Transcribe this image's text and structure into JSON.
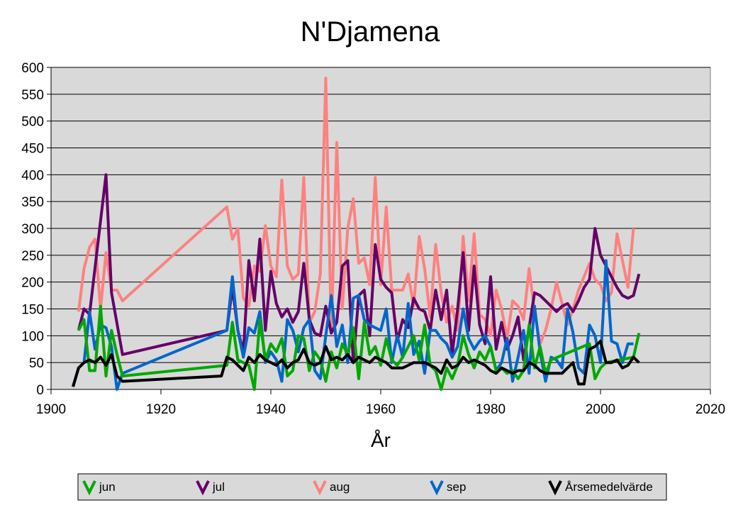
{
  "chart_data": {
    "type": "line",
    "title": "N'Djamena",
    "xlabel": "År",
    "ylabel": "",
    "xlim": [
      1900,
      2020
    ],
    "ylim": [
      0,
      600
    ],
    "xticks": [
      1900,
      1920,
      1940,
      1960,
      1980,
      2000,
      2020
    ],
    "yticks": [
      0,
      50,
      100,
      150,
      200,
      250,
      300,
      350,
      400,
      450,
      500,
      550,
      600
    ],
    "grid": "horizontal",
    "legend_position": "bottom",
    "series": [
      {
        "name": "jun",
        "color": "#00a800",
        "x": [
          1905,
          1906,
          1907,
          1908,
          1909,
          1910,
          1911,
          1912,
          1913,
          1932,
          1933,
          1934,
          1935,
          1936,
          1937,
          1938,
          1939,
          1940,
          1941,
          1942,
          1943,
          1944,
          1945,
          1946,
          1947,
          1948,
          1949,
          1950,
          1951,
          1952,
          1953,
          1954,
          1955,
          1956,
          1957,
          1958,
          1959,
          1960,
          1961,
          1962,
          1963,
          1964,
          1965,
          1966,
          1967,
          1968,
          1969,
          1970,
          1971,
          1972,
          1973,
          1974,
          1975,
          1976,
          1977,
          1978,
          1979,
          1980,
          1981,
          1982,
          1983,
          1984,
          1985,
          1986,
          1987,
          1988,
          1989,
          1990,
          1991,
          1998,
          1999,
          2000,
          2001,
          2006,
          2007
        ],
        "y": [
          110,
          130,
          35,
          35,
          155,
          25,
          110,
          65,
          25,
          45,
          125,
          55,
          50,
          45,
          0,
          130,
          55,
          85,
          70,
          95,
          25,
          35,
          100,
          95,
          35,
          70,
          55,
          15,
          70,
          40,
          85,
          65,
          115,
          20,
          125,
          65,
          80,
          45,
          95,
          55,
          45,
          60,
          80,
          100,
          55,
          120,
          45,
          35,
          0,
          40,
          20,
          45,
          100,
          65,
          40,
          70,
          55,
          80,
          35,
          40,
          30,
          35,
          20,
          35,
          120,
          40,
          80,
          30,
          55,
          85,
          20,
          40,
          50,
          60,
          105
        ]
      },
      {
        "name": "jul",
        "color": "#660066",
        "x": [
          1905,
          1906,
          1907,
          1910,
          1911,
          1913,
          1932,
          1933,
          1934,
          1935,
          1936,
          1937,
          1938,
          1939,
          1940,
          1941,
          1942,
          1943,
          1944,
          1945,
          1946,
          1947,
          1948,
          1949,
          1950,
          1951,
          1952,
          1953,
          1954,
          1955,
          1956,
          1957,
          1958,
          1959,
          1960,
          1961,
          1962,
          1963,
          1964,
          1965,
          1966,
          1967,
          1968,
          1969,
          1970,
          1971,
          1972,
          1973,
          1974,
          1975,
          1976,
          1977,
          1978,
          1979,
          1980,
          1981,
          1982,
          1983,
          1984,
          1985,
          1986,
          1987,
          1988,
          1989,
          1990,
          1991,
          1992,
          1993,
          1994,
          1995,
          1996,
          1997,
          1998,
          1999,
          2000,
          2001,
          2002,
          2003,
          2004,
          2005,
          2006,
          2007
        ],
        "y": [
          110,
          150,
          140,
          400,
          180,
          65,
          110,
          190,
          110,
          70,
          240,
          165,
          280,
          110,
          220,
          160,
          135,
          150,
          125,
          145,
          235,
          130,
          105,
          100,
          155,
          105,
          125,
          230,
          240,
          50,
          175,
          185,
          100,
          270,
          205,
          190,
          180,
          90,
          130,
          115,
          170,
          150,
          145,
          110,
          185,
          130,
          185,
          65,
          150,
          255,
          110,
          230,
          120,
          85,
          210,
          75,
          125,
          75,
          100,
          135,
          55,
          115,
          180,
          175,
          165,
          155,
          145,
          155,
          160,
          145,
          165,
          190,
          205,
          300,
          250,
          230,
          210,
          190,
          175,
          170,
          175,
          215
        ]
      },
      {
        "name": "aug",
        "color": "#ff8080",
        "x": [
          1905,
          1906,
          1907,
          1908,
          1909,
          1910,
          1911,
          1912,
          1913,
          1932,
          1933,
          1934,
          1935,
          1936,
          1937,
          1938,
          1939,
          1940,
          1941,
          1942,
          1943,
          1944,
          1945,
          1946,
          1947,
          1948,
          1949,
          1950,
          1951,
          1952,
          1953,
          1954,
          1955,
          1956,
          1957,
          1958,
          1959,
          1960,
          1961,
          1962,
          1963,
          1964,
          1965,
          1966,
          1967,
          1968,
          1969,
          1970,
          1971,
          1972,
          1973,
          1974,
          1975,
          1976,
          1977,
          1978,
          1979,
          1980,
          1981,
          1982,
          1983,
          1984,
          1985,
          1986,
          1987,
          1988,
          1989,
          1990,
          1991,
          1992,
          1993,
          1994,
          1995,
          1996,
          1997,
          1998,
          1999,
          2000,
          2001,
          2002,
          2003,
          2004,
          2005,
          2006
        ],
        "y": [
          145,
          225,
          265,
          280,
          150,
          255,
          185,
          185,
          165,
          340,
          280,
          300,
          170,
          155,
          230,
          220,
          305,
          230,
          210,
          390,
          230,
          205,
          215,
          395,
          125,
          145,
          215,
          580,
          105,
          460,
          150,
          300,
          355,
          235,
          245,
          195,
          395,
          195,
          340,
          185,
          185,
          185,
          215,
          155,
          285,
          225,
          135,
          270,
          180,
          125,
          155,
          110,
          285,
          165,
          290,
          140,
          130,
          100,
          185,
          150,
          95,
          165,
          155,
          130,
          225,
          145,
          85,
          110,
          150,
          200,
          160,
          120,
          150,
          185,
          210,
          235,
          205,
          195,
          165,
          180,
          290,
          240,
          190,
          300
        ]
      },
      {
        "name": "sep",
        "color": "#0066cc",
        "x": [
          1904,
          1905,
          1906,
          1907,
          1908,
          1909,
          1910,
          1911,
          1912,
          1913,
          1932,
          1933,
          1934,
          1935,
          1936,
          1937,
          1938,
          1939,
          1940,
          1941,
          1942,
          1943,
          1944,
          1945,
          1946,
          1947,
          1948,
          1949,
          1950,
          1951,
          1952,
          1953,
          1954,
          1955,
          1956,
          1957,
          1958,
          1959,
          1960,
          1961,
          1962,
          1963,
          1964,
          1965,
          1966,
          1967,
          1968,
          1969,
          1970,
          1971,
          1972,
          1973,
          1974,
          1975,
          1976,
          1977,
          1978,
          1979,
          1980,
          1981,
          1982,
          1983,
          1984,
          1985,
          1986,
          1987,
          1988,
          1989,
          1990,
          1991,
          1992,
          1993,
          1994,
          1995,
          1996,
          1997,
          1998,
          1999,
          2000,
          2001,
          2002,
          2003,
          2004,
          2005,
          2006
        ],
        "y": [
          5,
          40,
          50,
          145,
          75,
          120,
          115,
          80,
          0,
          30,
          110,
          210,
          110,
          60,
          115,
          105,
          145,
          50,
          70,
          55,
          15,
          130,
          110,
          70,
          115,
          130,
          35,
          20,
          100,
          175,
          80,
          120,
          50,
          170,
          175,
          130,
          120,
          115,
          110,
          150,
          50,
          100,
          60,
          160,
          65,
          90,
          30,
          110,
          110,
          95,
          85,
          60,
          80,
          150,
          95,
          75,
          90,
          100,
          80,
          35,
          50,
          95,
          15,
          60,
          110,
          30,
          155,
          70,
          15,
          60,
          55,
          40,
          150,
          105,
          40,
          30,
          120,
          100,
          50,
          240,
          90,
          85,
          50,
          85,
          85
        ]
      },
      {
        "name": "Årsemedelvärde",
        "color": "#000000",
        "x": [
          1904,
          1905,
          1906,
          1907,
          1908,
          1909,
          1910,
          1911,
          1912,
          1913,
          1931,
          1932,
          1933,
          1934,
          1935,
          1936,
          1937,
          1938,
          1939,
          1940,
          1941,
          1942,
          1943,
          1944,
          1945,
          1946,
          1947,
          1948,
          1949,
          1950,
          1951,
          1952,
          1953,
          1954,
          1955,
          1956,
          1957,
          1958,
          1959,
          1960,
          1961,
          1962,
          1963,
          1964,
          1965,
          1966,
          1967,
          1968,
          1969,
          1970,
          1971,
          1972,
          1973,
          1974,
          1975,
          1976,
          1977,
          1978,
          1979,
          1980,
          1981,
          1982,
          1983,
          1984,
          1985,
          1986,
          1987,
          1988,
          1989,
          1990,
          1991,
          1992,
          1993,
          1994,
          1995,
          1996,
          1997,
          1998,
          1999,
          2000,
          2001,
          2002,
          2003,
          2004,
          2005,
          2006,
          2007
        ],
        "y": [
          5,
          40,
          50,
          55,
          50,
          60,
          45,
          65,
          25,
          15,
          25,
          60,
          55,
          45,
          35,
          60,
          50,
          65,
          55,
          50,
          45,
          55,
          40,
          50,
          55,
          75,
          50,
          45,
          50,
          80,
          55,
          60,
          55,
          65,
          50,
          60,
          55,
          50,
          60,
          55,
          50,
          40,
          40,
          40,
          45,
          50,
          50,
          50,
          45,
          40,
          30,
          55,
          40,
          45,
          60,
          50,
          55,
          50,
          45,
          35,
          30,
          40,
          35,
          30,
          35,
          35,
          50,
          45,
          35,
          30,
          30,
          30,
          30,
          40,
          50,
          10,
          10,
          75,
          80,
          90,
          50,
          50,
          55,
          40,
          45,
          60,
          50
        ]
      }
    ]
  }
}
